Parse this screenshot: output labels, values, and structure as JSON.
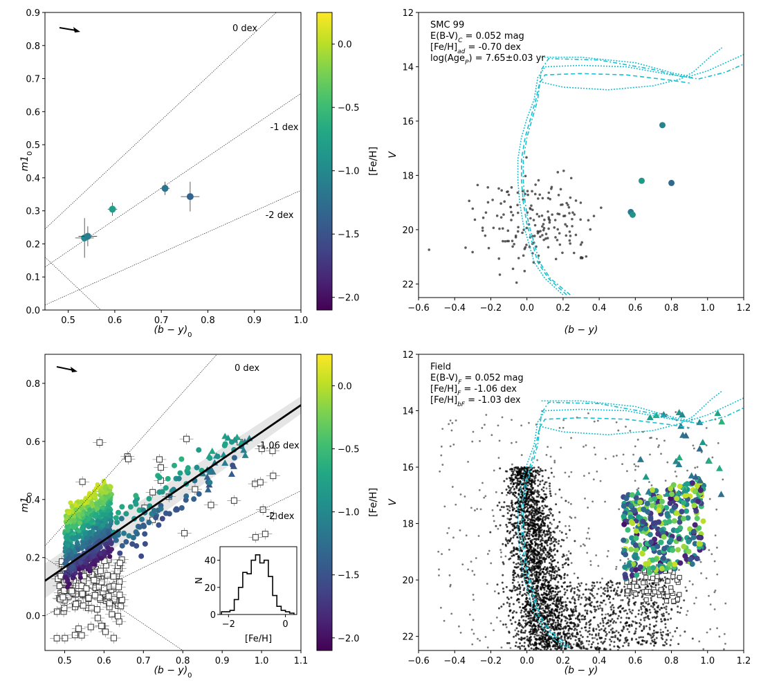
{
  "chart_data": [
    {
      "id": "top-left",
      "type": "scatter",
      "xlabel": "(b − y)",
      "xlabel_sub": "0",
      "ylabel": "m1",
      "ylabel_sub": "0",
      "xlim": [
        0.45,
        1.0
      ],
      "ylim": [
        0.0,
        0.9
      ],
      "xticks": [
        0.5,
        0.6,
        0.7,
        0.8,
        0.9,
        1.0
      ],
      "yticks": [
        0.0,
        0.1,
        0.2,
        0.3,
        0.4,
        0.5,
        0.6,
        0.7,
        0.8,
        0.9
      ],
      "iso_lines": [
        {
          "label": "0 dex",
          "x1": 0.45,
          "y1": 0.245,
          "x2": 1.0,
          "y2": 0.97
        },
        {
          "label": "-1 dex",
          "x1": 0.45,
          "y1": 0.13,
          "x2": 1.0,
          "y2": 0.655
        },
        {
          "label": "-2 dex",
          "x1": 0.45,
          "y1": 0.015,
          "x2": 1.0,
          "y2": 0.362
        },
        {
          "label": "",
          "x1": 0.45,
          "y1": 0.16,
          "x2": 0.57,
          "y2": 0.0
        }
      ],
      "points": [
        {
          "x": 0.535,
          "y": 0.218,
          "xerr": 0.02,
          "yerr": 0.06,
          "feh": -1.0
        },
        {
          "x": 0.542,
          "y": 0.223,
          "xerr": 0.02,
          "yerr": 0.03,
          "feh": -1.1
        },
        {
          "x": 0.595,
          "y": 0.305,
          "xerr": 0.01,
          "yerr": 0.02,
          "feh": -0.8
        },
        {
          "x": 0.708,
          "y": 0.368,
          "xerr": 0.01,
          "yerr": 0.02,
          "feh": -1.2
        },
        {
          "x": 0.762,
          "y": 0.343,
          "xerr": 0.02,
          "yerr": 0.045,
          "feh": -1.35
        }
      ],
      "colorbar": {
        "label": "[Fe/H]",
        "range": [
          -2.1,
          0.25
        ],
        "ticks": [
          "0.0",
          "−0.5",
          "−1.0",
          "−1.5",
          "−2.0"
        ],
        "tick_values": [
          0.0,
          -0.5,
          -1.0,
          -1.5,
          -2.0
        ]
      }
    },
    {
      "id": "top-right",
      "type": "scatter",
      "xlabel": "(b − y)",
      "ylabel": "V",
      "xlim": [
        -0.6,
        1.2
      ],
      "ylim": [
        22.5,
        12.0
      ],
      "xticks": [
        -0.6,
        -0.4,
        -0.2,
        0.0,
        0.2,
        0.4,
        0.6,
        0.8,
        1.0,
        1.2
      ],
      "xticklabels": [
        "−0.6",
        "−0.4",
        "−0.2",
        "0.0",
        "0.2",
        "0.4",
        "0.6",
        "0.8",
        "1.0",
        "1.2"
      ],
      "yticks": [
        12,
        14,
        16,
        18,
        20,
        22
      ],
      "info": [
        "SMC 99",
        "E(B-V)_C = 0.052 mag",
        "[Fe/H]_ad = -0.70 dex",
        "log(Age_P) = 7.65±0.03 yr"
      ],
      "colored_points": [
        {
          "x": 0.75,
          "y": 16.15,
          "feh": -1.05
        },
        {
          "x": 0.635,
          "y": 18.2,
          "feh": -0.85
        },
        {
          "x": 0.8,
          "y": 18.28,
          "feh": -1.3
        },
        {
          "x": 0.575,
          "y": 19.35,
          "feh": -1.15
        },
        {
          "x": 0.585,
          "y": 19.45,
          "feh": -0.9
        }
      ],
      "field_stars": 180,
      "isochrone_color": "#17becf"
    },
    {
      "id": "bottom-left",
      "type": "scatter",
      "xlabel": "(b − y)",
      "xlabel_sub": "0",
      "ylabel": "m1",
      "ylabel_sub": "0",
      "xlim": [
        0.45,
        1.1
      ],
      "ylim": [
        -0.12,
        0.9
      ],
      "xticks": [
        0.5,
        0.6,
        0.7,
        0.8,
        0.9,
        1.0,
        1.1
      ],
      "yticks": [
        0.0,
        0.2,
        0.4,
        0.6,
        0.8
      ],
      "iso_lines": [
        {
          "label": "0 dex",
          "x1": 0.45,
          "y1": 0.24,
          "x2": 0.9,
          "y2": 0.92
        },
        {
          "label": "-1.06 dex",
          "x1": 0.45,
          "y1": 0.12,
          "x2": 1.1,
          "y2": 0.725
        },
        {
          "label": "-2 dex",
          "x1": 0.45,
          "y1": 0.0,
          "x2": 1.1,
          "y2": 0.43
        },
        {
          "label": "",
          "x1": 0.45,
          "y1": 0.2,
          "x2": 0.8,
          "y2": -0.12
        }
      ],
      "fit_line": {
        "x1": 0.45,
        "y1": 0.12,
        "x2": 1.1,
        "y2": 0.725,
        "band": 0.03
      },
      "inset": {
        "type": "histogram",
        "xlabel": "[Fe/H]",
        "ylabel": "N",
        "xlim": [
          -2.3,
          0.4
        ],
        "ylim": [
          0,
          50
        ],
        "xticks": [
          -2,
          0
        ],
        "xticklabels": [
          "−2",
          "0"
        ],
        "yticks": [
          0,
          20,
          40
        ],
        "bin_edges": [
          -2.25,
          -2.1,
          -1.95,
          -1.8,
          -1.65,
          -1.5,
          -1.35,
          -1.2,
          -1.05,
          -0.9,
          -0.75,
          -0.6,
          -0.45,
          -0.3,
          -0.15,
          0.0,
          0.15,
          0.3
        ],
        "counts": [
          2,
          2,
          3,
          11,
          20,
          31,
          30,
          40,
          44,
          38,
          40,
          28,
          14,
          6,
          3,
          2,
          1
        ]
      },
      "colorbar": {
        "label": "[Fe/H]",
        "range": [
          -2.1,
          0.25
        ],
        "ticks": [
          "0.0",
          "−0.5",
          "−1.0",
          "−1.5",
          "−2.0"
        ],
        "tick_values": [
          0.0,
          -0.5,
          -1.0,
          -1.5,
          -2.0
        ]
      }
    },
    {
      "id": "bottom-right",
      "type": "scatter",
      "xlabel": "(b − y)",
      "ylabel": "V",
      "xlim": [
        -0.6,
        1.2
      ],
      "ylim": [
        22.5,
        12.0
      ],
      "xticks": [
        -0.6,
        -0.4,
        -0.2,
        0.0,
        0.2,
        0.4,
        0.6,
        0.8,
        1.0,
        1.2
      ],
      "xticklabels": [
        "−0.6",
        "−0.4",
        "−0.2",
        "0.0",
        "0.2",
        "0.4",
        "0.6",
        "0.8",
        "1.0",
        "1.2"
      ],
      "yticks": [
        12,
        14,
        16,
        18,
        20,
        22
      ],
      "info": [
        "Field",
        "E(B-V)_F = 0.052 mag",
        "[Fe/H]_F = -1.06 dex",
        "[Fe/H]_bF = -1.03 dex"
      ],
      "isochrone_color": "#17becf"
    }
  ]
}
